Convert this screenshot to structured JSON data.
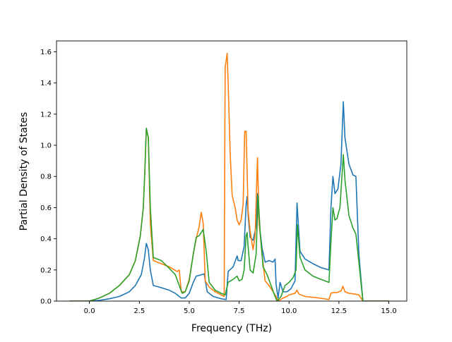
{
  "chart_data": {
    "type": "line",
    "title": "",
    "xlabel": "Frequency (THz)",
    "ylabel": "Partial Density of States",
    "xlim": [
      -1.65,
      15.9
    ],
    "ylim": [
      0,
      1.67
    ],
    "xticks": [
      "0.0",
      "2.5",
      "5.0",
      "7.5",
      "10.0",
      "12.5",
      "15.0"
    ],
    "yticks": [
      "0.0",
      "0.2",
      "0.4",
      "0.6",
      "0.8",
      "1.0",
      "1.2",
      "1.4",
      "1.6"
    ],
    "grid": false,
    "legend": "none",
    "series": [
      {
        "color": "#1f77b4",
        "points": [
          [
            -1.0,
            0
          ],
          [
            0,
            0
          ],
          [
            0.5,
            0.005
          ],
          [
            1.0,
            0.015
          ],
          [
            1.5,
            0.03
          ],
          [
            2.0,
            0.06
          ],
          [
            2.3,
            0.1
          ],
          [
            2.6,
            0.17
          ],
          [
            2.75,
            0.27
          ],
          [
            2.85,
            0.37
          ],
          [
            2.95,
            0.33
          ],
          [
            3.05,
            0.2
          ],
          [
            3.2,
            0.1
          ],
          [
            3.5,
            0.09
          ],
          [
            4.0,
            0.07
          ],
          [
            4.3,
            0.05
          ],
          [
            4.6,
            0.02
          ],
          [
            4.8,
            0.02
          ],
          [
            5.0,
            0.05
          ],
          [
            5.2,
            0.12
          ],
          [
            5.35,
            0.16
          ],
          [
            5.5,
            0.165
          ],
          [
            5.75,
            0.175
          ],
          [
            5.9,
            0.06
          ],
          [
            6.2,
            0.03
          ],
          [
            6.6,
            0.015
          ],
          [
            6.85,
            0.01
          ],
          [
            6.95,
            0.19
          ],
          [
            7.2,
            0.22
          ],
          [
            7.4,
            0.29
          ],
          [
            7.45,
            0.26
          ],
          [
            7.6,
            0.26
          ],
          [
            7.75,
            0.35
          ],
          [
            7.85,
            0.62
          ],
          [
            7.9,
            0.67
          ],
          [
            7.95,
            0.55
          ],
          [
            8.05,
            0.41
          ],
          [
            8.2,
            0.39
          ],
          [
            8.35,
            0.48
          ],
          [
            8.42,
            0.69
          ],
          [
            8.5,
            0.5
          ],
          [
            8.65,
            0.34
          ],
          [
            8.8,
            0.25
          ],
          [
            9.0,
            0.26
          ],
          [
            9.2,
            0.25
          ],
          [
            9.3,
            0.27
          ],
          [
            9.35,
            0.11
          ],
          [
            9.45,
            0.02
          ],
          [
            9.55,
            0.12
          ],
          [
            9.7,
            0.06
          ],
          [
            9.9,
            0.06
          ],
          [
            10.1,
            0.08
          ],
          [
            10.3,
            0.13
          ],
          [
            10.4,
            0.63
          ],
          [
            10.55,
            0.32
          ],
          [
            10.8,
            0.27
          ],
          [
            11.2,
            0.24
          ],
          [
            11.6,
            0.215
          ],
          [
            12.0,
            0.2
          ],
          [
            12.1,
            0.6
          ],
          [
            12.2,
            0.8
          ],
          [
            12.3,
            0.69
          ],
          [
            12.45,
            0.72
          ],
          [
            12.6,
            0.88
          ],
          [
            12.72,
            1.28
          ],
          [
            12.8,
            1.05
          ],
          [
            13.0,
            0.88
          ],
          [
            13.2,
            0.81
          ],
          [
            13.35,
            0.8
          ],
          [
            13.5,
            0.3
          ],
          [
            13.7,
            0
          ],
          [
            14.0,
            0
          ],
          [
            15.0,
            0
          ]
        ]
      },
      {
        "color": "#ff7f0e",
        "points": [
          [
            -1.0,
            0
          ],
          [
            0,
            0
          ],
          [
            0.5,
            0.02
          ],
          [
            1.0,
            0.05
          ],
          [
            1.5,
            0.1
          ],
          [
            2.0,
            0.17
          ],
          [
            2.3,
            0.26
          ],
          [
            2.55,
            0.42
          ],
          [
            2.7,
            0.6
          ],
          [
            2.78,
            0.85
          ],
          [
            2.85,
            1.1
          ],
          [
            2.95,
            1.05
          ],
          [
            3.05,
            0.5
          ],
          [
            3.2,
            0.26
          ],
          [
            3.6,
            0.24
          ],
          [
            4.0,
            0.22
          ],
          [
            4.4,
            0.19
          ],
          [
            4.5,
            0.2
          ],
          [
            4.6,
            0.06
          ],
          [
            4.8,
            0.06
          ],
          [
            5.0,
            0.14
          ],
          [
            5.2,
            0.3
          ],
          [
            5.35,
            0.4
          ],
          [
            5.5,
            0.48
          ],
          [
            5.6,
            0.57
          ],
          [
            5.7,
            0.5
          ],
          [
            5.8,
            0.13
          ],
          [
            6.0,
            0.09
          ],
          [
            6.3,
            0.06
          ],
          [
            6.6,
            0.04
          ],
          [
            6.75,
            0.03
          ],
          [
            6.8,
            1.5
          ],
          [
            6.9,
            1.59
          ],
          [
            6.95,
            1.4
          ],
          [
            7.05,
            0.95
          ],
          [
            7.15,
            0.68
          ],
          [
            7.3,
            0.6
          ],
          [
            7.4,
            0.52
          ],
          [
            7.5,
            0.49
          ],
          [
            7.6,
            0.52
          ],
          [
            7.7,
            0.62
          ],
          [
            7.78,
            1.09
          ],
          [
            7.85,
            1.09
          ],
          [
            7.95,
            0.58
          ],
          [
            8.05,
            0.45
          ],
          [
            8.2,
            0.33
          ],
          [
            8.3,
            0.42
          ],
          [
            8.42,
            0.92
          ],
          [
            8.5,
            0.5
          ],
          [
            8.65,
            0.3
          ],
          [
            8.8,
            0.13
          ],
          [
            9.0,
            0.1
          ],
          [
            9.2,
            0.06
          ],
          [
            9.35,
            0.03
          ],
          [
            9.45,
            0
          ],
          [
            9.7,
            0.02
          ],
          [
            9.9,
            0.03
          ],
          [
            10.0,
            0.04
          ],
          [
            10.3,
            0.05
          ],
          [
            10.4,
            0.07
          ],
          [
            10.5,
            0.045
          ],
          [
            10.8,
            0.03
          ],
          [
            11.5,
            0.02
          ],
          [
            12.0,
            0.01
          ],
          [
            12.1,
            0.05
          ],
          [
            12.2,
            0.055
          ],
          [
            12.4,
            0.055
          ],
          [
            12.6,
            0.065
          ],
          [
            12.7,
            0.095
          ],
          [
            12.8,
            0.06
          ],
          [
            13.0,
            0.05
          ],
          [
            13.3,
            0.045
          ],
          [
            13.5,
            0.04
          ],
          [
            13.7,
            0
          ],
          [
            14.0,
            0
          ],
          [
            15.0,
            0
          ]
        ]
      },
      {
        "color": "#2ca02c",
        "points": [
          [
            -1.0,
            0
          ],
          [
            0,
            0
          ],
          [
            0.5,
            0.02
          ],
          [
            1.0,
            0.05
          ],
          [
            1.5,
            0.1
          ],
          [
            2.0,
            0.17
          ],
          [
            2.3,
            0.26
          ],
          [
            2.55,
            0.42
          ],
          [
            2.7,
            0.6
          ],
          [
            2.78,
            0.85
          ],
          [
            2.85,
            1.11
          ],
          [
            2.95,
            1.05
          ],
          [
            3.05,
            0.6
          ],
          [
            3.2,
            0.28
          ],
          [
            3.6,
            0.26
          ],
          [
            4.0,
            0.21
          ],
          [
            4.3,
            0.17
          ],
          [
            4.5,
            0.1
          ],
          [
            4.65,
            0.05
          ],
          [
            4.8,
            0.06
          ],
          [
            5.0,
            0.13
          ],
          [
            5.2,
            0.3
          ],
          [
            5.35,
            0.41
          ],
          [
            5.5,
            0.42
          ],
          [
            5.7,
            0.46
          ],
          [
            5.85,
            0.32
          ],
          [
            6.0,
            0.12
          ],
          [
            6.3,
            0.07
          ],
          [
            6.6,
            0.05
          ],
          [
            6.8,
            0.04
          ],
          [
            6.95,
            0.12
          ],
          [
            7.2,
            0.14
          ],
          [
            7.4,
            0.16
          ],
          [
            7.5,
            0.13
          ],
          [
            7.65,
            0.14
          ],
          [
            7.75,
            0.2
          ],
          [
            7.85,
            0.42
          ],
          [
            7.9,
            0.44
          ],
          [
            7.95,
            0.35
          ],
          [
            8.05,
            0.2
          ],
          [
            8.2,
            0.18
          ],
          [
            8.35,
            0.3
          ],
          [
            8.45,
            0.68
          ],
          [
            8.55,
            0.45
          ],
          [
            8.7,
            0.22
          ],
          [
            8.9,
            0.17
          ],
          [
            9.1,
            0.1
          ],
          [
            9.3,
            0.03
          ],
          [
            9.4,
            0
          ],
          [
            9.6,
            0.03
          ],
          [
            9.8,
            0.1
          ],
          [
            10.0,
            0.12
          ],
          [
            10.2,
            0.15
          ],
          [
            10.35,
            0.2
          ],
          [
            10.42,
            0.49
          ],
          [
            10.55,
            0.28
          ],
          [
            10.8,
            0.2
          ],
          [
            11.2,
            0.16
          ],
          [
            11.6,
            0.14
          ],
          [
            12.0,
            0.12
          ],
          [
            12.1,
            0.38
          ],
          [
            12.2,
            0.6
          ],
          [
            12.3,
            0.52
          ],
          [
            12.4,
            0.53
          ],
          [
            12.55,
            0.6
          ],
          [
            12.72,
            0.94
          ],
          [
            12.8,
            0.78
          ],
          [
            13.0,
            0.55
          ],
          [
            13.2,
            0.47
          ],
          [
            13.35,
            0.43
          ],
          [
            13.5,
            0.25
          ],
          [
            13.7,
            0
          ],
          [
            14.0,
            0
          ],
          [
            15.0,
            0
          ]
        ]
      }
    ]
  }
}
